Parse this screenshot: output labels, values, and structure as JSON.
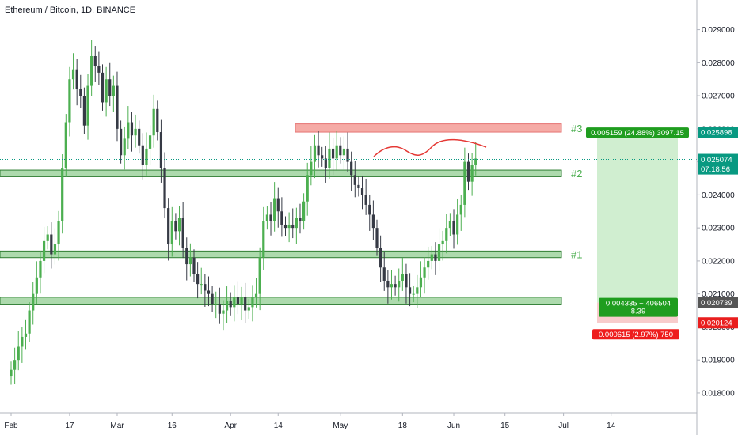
{
  "chart_data": {
    "type": "candlestick",
    "title": "Ethereum / Bitcoin, 1D, BINANCE",
    "y_ticks": [
      "0.029000",
      "0.028000",
      "0.027000",
      "0.026000",
      "0.025000",
      "0.024000",
      "0.023000",
      "0.022000",
      "0.021000",
      "0.020000",
      "0.019000",
      "0.018000"
    ],
    "y_tick_values": [
      0.029,
      0.028,
      0.027,
      0.026,
      0.025,
      0.024,
      0.023,
      0.022,
      0.021,
      0.02,
      0.019,
      0.018
    ],
    "x_ticks": [
      "Feb",
      "17",
      "Mar",
      "16",
      "Apr",
      "14",
      "May",
      "18",
      "Jun",
      "15",
      "Jul",
      "14"
    ],
    "x_tick_days": [
      0,
      16,
      29,
      44,
      60,
      73,
      90,
      107,
      121,
      135,
      151,
      164
    ],
    "axis_start_date": "2020-01-31",
    "y_range": [
      0.0174,
      0.0299
    ],
    "price_tags": [
      {
        "name": "tp-price",
        "value": 0.025898,
        "label": "0.025898",
        "color": "#089981"
      },
      {
        "name": "last-price",
        "value": 0.025074,
        "label": "0.025074",
        "color": "#089981"
      },
      {
        "name": "countdown",
        "value": 0.024785,
        "label": "07:18:56",
        "color": "#089981"
      },
      {
        "name": "entry-price",
        "value": 0.020739,
        "label": "0.020739",
        "color": "#555555"
      },
      {
        "name": "stop-price",
        "value": 0.020124,
        "label": "0.020124",
        "color": "#e91e1e"
      }
    ],
    "zones": [
      {
        "name": "resistance-zone-3",
        "low": 0.0259,
        "high": 0.02615,
        "color": "#f4a29c",
        "label": "#3"
      },
      {
        "name": "zone-2",
        "low": 0.02455,
        "high": 0.02475,
        "color": "#9fd49f",
        "label": "#2"
      },
      {
        "name": "zone-1",
        "low": 0.0221,
        "high": 0.0223,
        "color": "#9fd49f",
        "label": "#1"
      },
      {
        "name": "zone-bottom",
        "low": 0.02067,
        "high": 0.0209,
        "color": "#9fd49f",
        "label": ""
      }
    ],
    "long_position": {
      "entry": 0.020739,
      "target": 0.025898,
      "stop": 0.020124,
      "target_label": "0.005159 (24.88%) 3097.15",
      "entry_label_1": "0.004335 ~ 406504",
      "entry_label_2": "8.39",
      "stop_label": "0.000615 (2.97%) 750"
    },
    "close_series": [
      0.0187,
      0.019,
      0.0194,
      0.0197,
      0.0198,
      0.0205,
      0.021,
      0.0215,
      0.022,
      0.0226,
      0.0228,
      0.0222,
      0.0225,
      0.0232,
      0.0248,
      0.0262,
      0.0275,
      0.0278,
      0.0272,
      0.027,
      0.0261,
      0.0273,
      0.0282,
      0.0279,
      0.0277,
      0.0268,
      0.0275,
      0.027,
      0.0273,
      0.026,
      0.0252,
      0.0257,
      0.0262,
      0.0258,
      0.026,
      0.0255,
      0.0249,
      0.0254,
      0.0258,
      0.0266,
      0.0259,
      0.0248,
      0.0236,
      0.0225,
      0.0232,
      0.0229,
      0.0233,
      0.0224,
      0.0219,
      0.0221,
      0.0216,
      0.0213,
      0.0213,
      0.0211,
      0.021,
      0.0207,
      0.0207,
      0.0204,
      0.0205,
      0.0208,
      0.0206,
      0.0209,
      0.0207,
      0.0209,
      0.0205,
      0.0206,
      0.0209,
      0.021,
      0.0221,
      0.0232,
      0.0234,
      0.0232,
      0.0239,
      0.0235,
      0.0231,
      0.023,
      0.0231,
      0.023,
      0.0233,
      0.0232,
      0.0238,
      0.0246,
      0.025,
      0.0255,
      0.0252,
      0.0251,
      0.0248,
      0.0254,
      0.0251,
      0.0255,
      0.0252,
      0.0254,
      0.025,
      0.0246,
      0.0243,
      0.0242,
      0.024,
      0.0237,
      0.0234,
      0.023,
      0.0224,
      0.0218,
      0.0214,
      0.0212,
      0.0213,
      0.0212,
      0.0214,
      0.0216,
      0.0212,
      0.021,
      0.021,
      0.0212,
      0.0215,
      0.0218,
      0.022,
      0.0222,
      0.022,
      0.0225,
      0.0226,
      0.023,
      0.0232,
      0.0228,
      0.0234,
      0.0237,
      0.025,
      0.0244,
      0.0249,
      0.0251
    ]
  }
}
